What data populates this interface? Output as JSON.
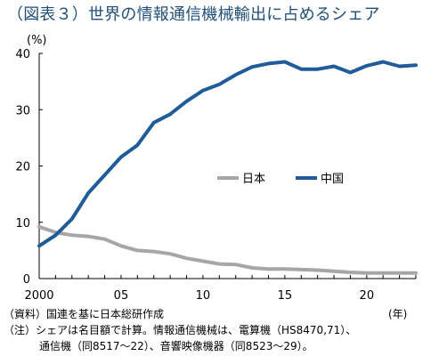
{
  "title": "（図表３）世界の情報通信機械輸出に占めるシェア",
  "chart_data": {
    "type": "line",
    "unit_label": "(%)",
    "x_unit_label": "(年)",
    "x": [
      2000,
      2001,
      2002,
      2003,
      2004,
      2005,
      2006,
      2007,
      2008,
      2009,
      2010,
      2011,
      2012,
      2013,
      2014,
      2015,
      2016,
      2017,
      2018,
      2019,
      2020,
      2021,
      2022,
      2023
    ],
    "xlim": [
      2000,
      2023
    ],
    "x_ticks": [
      2000,
      2005,
      2010,
      2015,
      2020
    ],
    "x_tick_labels": [
      "2000",
      "05",
      "10",
      "15",
      "20"
    ],
    "ylim": [
      0,
      40
    ],
    "y_ticks": [
      0,
      10,
      20,
      30,
      40
    ],
    "y_tick_labels": [
      "0",
      "10",
      "20",
      "30",
      "40"
    ],
    "grid": false,
    "legend_position": "center-right",
    "series": [
      {
        "name": "日本",
        "color": "#a6a6a6",
        "values": [
          9.2,
          8.2,
          7.7,
          7.5,
          7.0,
          5.8,
          5.0,
          4.8,
          4.4,
          3.6,
          3.1,
          2.6,
          2.5,
          1.9,
          1.7,
          1.7,
          1.6,
          1.5,
          1.3,
          1.1,
          1.0,
          1.0,
          1.0,
          1.0
        ]
      },
      {
        "name": "中国",
        "color": "#1f5c99",
        "values": [
          5.8,
          7.7,
          10.6,
          15.2,
          18.4,
          21.6,
          23.7,
          27.7,
          29.2,
          31.5,
          33.4,
          34.5,
          36.2,
          37.6,
          38.2,
          38.5,
          37.2,
          37.2,
          37.7,
          36.6,
          37.8,
          38.5,
          37.7,
          37.9
        ]
      }
    ]
  },
  "notes": {
    "source": "（資料）国連を基に日本総研作成",
    "note_line1": "（注）シェアは名目額で計算。情報通信機械は、電算機（HS8470,71）、",
    "note_line2": "通信機（同8517～22）、音響映像機器（同8523～29）。"
  }
}
